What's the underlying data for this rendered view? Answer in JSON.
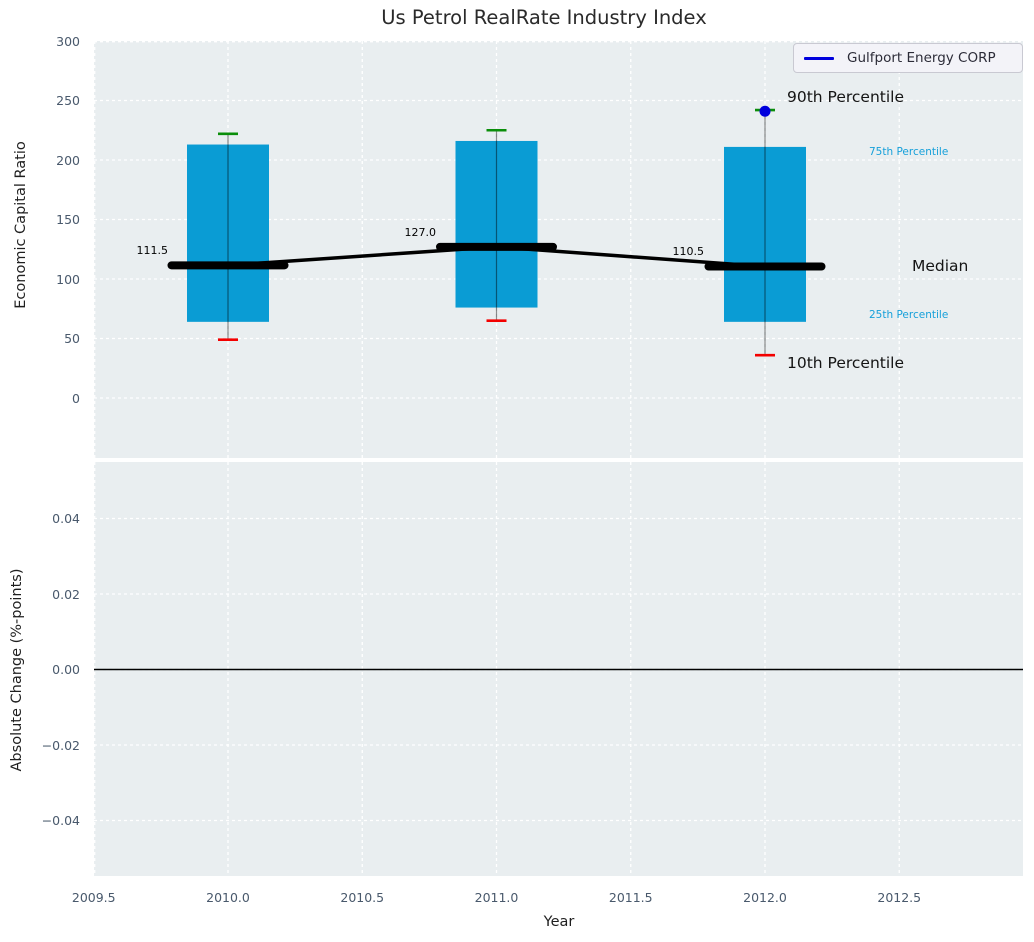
{
  "title": "Us Petrol RealRate Industry Index",
  "legend": {
    "series_label": "Gulfport Energy CORP"
  },
  "annotations": {
    "p90": "90th Percentile",
    "p75": "75th Percentile",
    "median": "Median",
    "p25": "25th Percentile",
    "p10": "10th Percentile"
  },
  "colors": {
    "plot_bg": "#e9eef0",
    "grid": "#ffffff",
    "box": "#0a9cd4",
    "median": "#000000",
    "whisker": "#000000",
    "cap_high": "#0a8e0a",
    "cap_low": "#f30000",
    "company": "#0000dd",
    "annotation_accent": "#16a0da",
    "tick_text": "#49596c"
  },
  "chart_data": [
    {
      "type": "box",
      "title": "Us Petrol RealRate Industry Index",
      "xlabel": "Year",
      "ylabel": "Economic Capital Ratio",
      "ylim": [
        -50,
        300
      ],
      "xlim": [
        2009.5,
        2012.96
      ],
      "grid": true,
      "legend_position": "upper right",
      "categories": [
        2010,
        2011,
        2012
      ],
      "boxes": [
        {
          "year": 2010,
          "p10": 49,
          "p25": 64,
          "median": 111.5,
          "p75": 213,
          "p90": 222,
          "median_label": "111.5"
        },
        {
          "year": 2011,
          "p10": 65,
          "p25": 76,
          "median": 127.0,
          "p75": 216,
          "p90": 225,
          "median_label": "127.0"
        },
        {
          "year": 2012,
          "p10": 36,
          "p25": 64,
          "median": 110.5,
          "p75": 211,
          "p90": 242,
          "median_label": "110.5"
        }
      ],
      "series": [
        {
          "name": "Gulfport Energy CORP",
          "points": [
            {
              "x": 2012,
              "y": 241
            }
          ]
        }
      ],
      "yticks": [
        {
          "v": 300,
          "label": "300"
        },
        {
          "v": 250,
          "label": "250"
        },
        {
          "v": 200,
          "label": "200"
        },
        {
          "v": 150,
          "label": "150"
        },
        {
          "v": 100,
          "label": "100"
        },
        {
          "v": 50,
          "label": "50"
        },
        {
          "v": 0,
          "label": "0"
        }
      ],
      "xticks": [
        {
          "v": 2009.5,
          "label": "2009.5"
        },
        {
          "v": 2010,
          "label": "2010.0"
        },
        {
          "v": 2010.5,
          "label": "2010.5"
        },
        {
          "v": 2011,
          "label": "2011.0"
        },
        {
          "v": 2011.5,
          "label": "2011.5"
        },
        {
          "v": 2012,
          "label": "2012.0"
        },
        {
          "v": 2012.5,
          "label": "2012.5"
        }
      ]
    },
    {
      "type": "line",
      "ylabel": "Absolute Change (%-points)",
      "ylim": [
        -0.055,
        0.055
      ],
      "grid": true,
      "zero_line": 0,
      "series": [],
      "yticks": [
        {
          "v": 0.04,
          "label": "0.04"
        },
        {
          "v": 0.02,
          "label": "0.02"
        },
        {
          "v": 0,
          "label": "0.00"
        },
        {
          "v": -0.02,
          "label": "−0.02"
        },
        {
          "v": -0.04,
          "label": "−0.04"
        }
      ]
    }
  ]
}
